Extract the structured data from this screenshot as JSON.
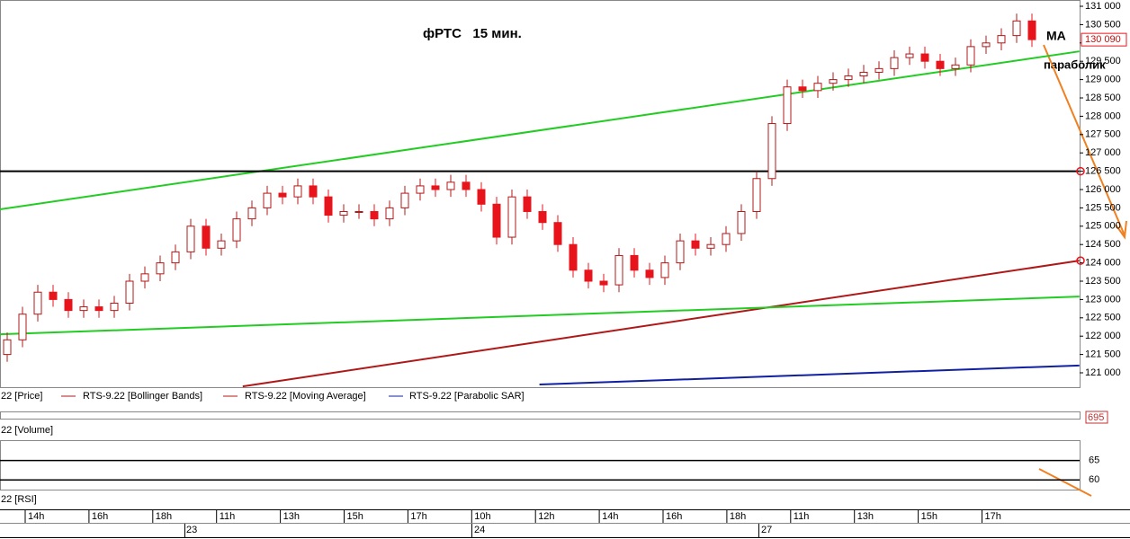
{
  "chart_data": {
    "type": "candlestick",
    "title": "фРТС   15 мин.",
    "annotations": [
      "MA",
      "параболик"
    ],
    "open": [
      121500,
      121900,
      122600,
      123200,
      123000,
      122700,
      122800,
      122700,
      122900,
      123500,
      123700,
      124000,
      124300,
      125000,
      124400,
      124600,
      125200,
      125500,
      125900,
      125800,
      126100,
      125800,
      125300,
      125400,
      125400,
      125200,
      125500,
      125900,
      126100,
      126000,
      126200,
      126000,
      125600,
      124700,
      125800,
      125400,
      125100,
      124500,
      123800,
      123500,
      123400,
      124200,
      123800,
      123600,
      124000,
      124600,
      124400,
      124500,
      124800,
      125400,
      126300,
      127800,
      128800,
      128700,
      128900,
      129000,
      129100,
      129200,
      129300,
      129600,
      129700,
      129500,
      129300,
      129400,
      129900,
      130000,
      130200,
      130600
    ],
    "high": [
      122100,
      122800,
      123400,
      123400,
      123200,
      123000,
      123000,
      123100,
      123700,
      123900,
      124200,
      124500,
      125200,
      125200,
      124800,
      125400,
      125700,
      126100,
      126100,
      126300,
      126300,
      126000,
      125600,
      125600,
      125600,
      125700,
      126100,
      126300,
      126300,
      126400,
      126400,
      126200,
      125800,
      126000,
      126000,
      125600,
      125300,
      124700,
      124000,
      123700,
      124400,
      124400,
      124000,
      124200,
      124800,
      124800,
      124700,
      125000,
      125600,
      126500,
      128000,
      129000,
      129000,
      129100,
      129200,
      129300,
      129400,
      129500,
      129800,
      129900,
      129900,
      129700,
      129600,
      130100,
      130200,
      130400,
      130800,
      130800
    ],
    "low": [
      121300,
      121700,
      122400,
      122800,
      122500,
      122500,
      122500,
      122500,
      122700,
      123300,
      123500,
      123800,
      124100,
      124200,
      124200,
      124400,
      125000,
      125300,
      125600,
      125600,
      125600,
      125100,
      125100,
      125200,
      125000,
      125000,
      125300,
      125700,
      125800,
      125800,
      125800,
      125400,
      124500,
      124500,
      125200,
      124900,
      124300,
      123600,
      123300,
      123200,
      123200,
      123600,
      123400,
      123400,
      123800,
      124200,
      124200,
      124300,
      124600,
      125200,
      126100,
      127600,
      128500,
      128500,
      128700,
      128800,
      128900,
      129000,
      129100,
      129400,
      129300,
      129100,
      129100,
      129200,
      129700,
      129800,
      130000,
      129890
    ],
    "close": [
      121900,
      122600,
      123200,
      123000,
      122700,
      122800,
      122700,
      122900,
      123500,
      123700,
      124000,
      124300,
      125000,
      124400,
      124600,
      125200,
      125500,
      125900,
      125800,
      126100,
      125800,
      125300,
      125400,
      125400,
      125200,
      125500,
      125900,
      126100,
      126000,
      126200,
      126000,
      125600,
      124700,
      125800,
      125400,
      125100,
      124500,
      123800,
      123500,
      123400,
      124200,
      123800,
      123600,
      124000,
      124600,
      124400,
      124500,
      124800,
      125400,
      126300,
      127800,
      128800,
      128700,
      128900,
      129000,
      129100,
      129200,
      129300,
      129600,
      129700,
      129500,
      129300,
      129400,
      129900,
      130000,
      130200,
      130600,
      130090
    ],
    "up_color": "#ffffff",
    "down_color": "#e8141c",
    "ylim": [
      121000,
      131000
    ],
    "yticks": [
      {
        "value": 131000,
        "label": "131 000"
      },
      {
        "value": 130500,
        "label": "130 500"
      },
      {
        "value": 130000,
        "label": "130 000"
      },
      {
        "value": 129500,
        "label": "129 500"
      },
      {
        "value": 129000,
        "label": "129 000"
      },
      {
        "value": 128500,
        "label": "128 500"
      },
      {
        "value": 128000,
        "label": "128 000"
      },
      {
        "value": 127500,
        "label": "127 500"
      },
      {
        "value": 127000,
        "label": "127 000"
      },
      {
        "value": 126500,
        "label": "126 500"
      },
      {
        "value": 126000,
        "label": "126 000"
      },
      {
        "value": 125500,
        "label": "125 500"
      },
      {
        "value": 125000,
        "label": "125 000"
      },
      {
        "value": 124500,
        "label": "124 500"
      },
      {
        "value": 124000,
        "label": "124 000"
      },
      {
        "value": 123500,
        "label": "123 500"
      },
      {
        "value": 123000,
        "label": "123 000"
      },
      {
        "value": 122500,
        "label": "122 500"
      },
      {
        "value": 122000,
        "label": "122 000"
      },
      {
        "value": 121500,
        "label": "121 500"
      },
      {
        "value": 121000,
        "label": "121 000"
      }
    ],
    "last_price": {
      "value": 130090,
      "label": "130 090"
    },
    "trendlines": [
      {
        "color": "#22cc22",
        "start": [
          -0.5,
          125460
        ],
        "end": [
          70.1,
          129770
        ]
      },
      {
        "color": "#000000",
        "start": [
          -0.5,
          126500
        ],
        "end": [
          70.1,
          126500
        ]
      },
      {
        "color": "#b01818",
        "start": [
          15.4,
          120630
        ],
        "end": [
          70.1,
          124060
        ]
      },
      {
        "color": "#22cc22",
        "start": [
          -0.5,
          122050
        ],
        "end": [
          70.1,
          123080
        ]
      },
      {
        "color": "#1020a0",
        "start": [
          34.8,
          120680
        ],
        "end": [
          70.1,
          121200
        ]
      }
    ],
    "legend": [
      "22 [Price]",
      "RTS-9.22 [Bollinger Bands]",
      "RTS-9.22 [Moving Average]",
      "RTS-9.22 [Parabolic SAR]"
    ],
    "volume_label": "22 [Volume]",
    "volume_value": 695,
    "rsi_label": "22 [RSI]",
    "rsi_ylim": [
      57.5,
      70
    ],
    "rsi_yticks": [
      65,
      60
    ],
    "time_labels": [
      "14h",
      "16h",
      "18h",
      "11h",
      "13h",
      "15h",
      "17h",
      "10h",
      "12h",
      "14h",
      "16h",
      "18h",
      "11h",
      "13h",
      "15h",
      "17h"
    ],
    "day_labels": [
      "23",
      "24",
      "27"
    ]
  }
}
